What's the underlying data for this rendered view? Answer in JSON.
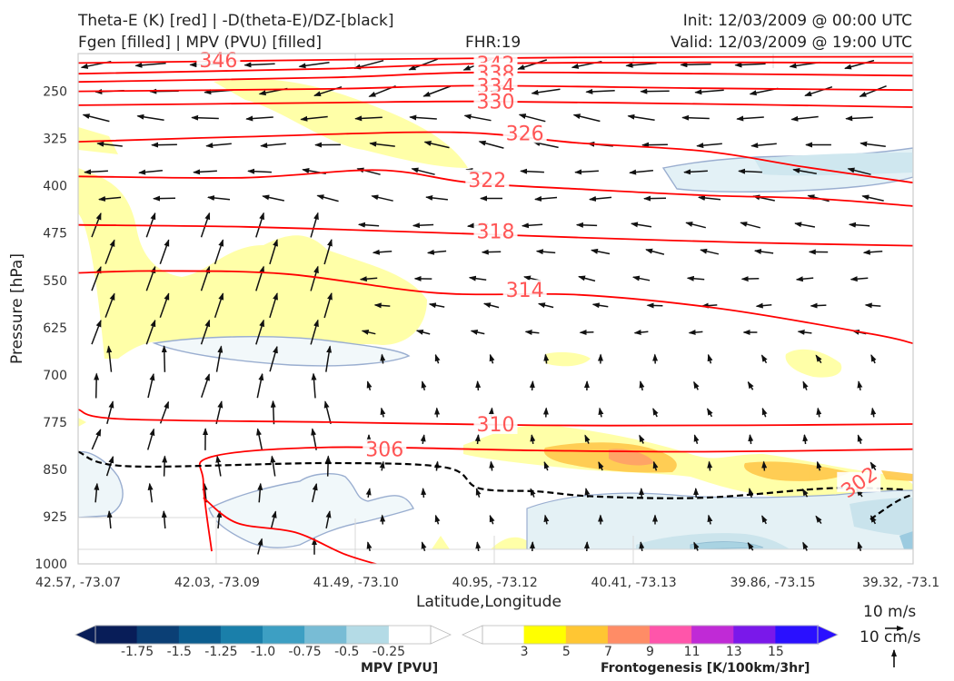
{
  "header": {
    "title_line1": "Theta-E (K) [red] | -D(theta-E)/DZ-[black]",
    "title_line2": "Fgen [filled] | MPV (PVU) [filled]",
    "fhr": "FHR:19",
    "init": "Init: 12/03/2009 @ 00:00 UTC",
    "valid": "Valid: 12/03/2009 @ 19:00 UTC"
  },
  "chart_data": {
    "type": "cross-section",
    "xlabel": "Latitude,Longitude",
    "ylabel": "Pressure [hPa]",
    "x_ticks": [
      "42.57, -73.07",
      "42.03, -73.09",
      "41.49, -73.10",
      "40.95, -73.12",
      "40.41, -73.13",
      "39.86, -73.15",
      "39.32, -73.1"
    ],
    "y_ticks": [
      250,
      325,
      400,
      475,
      550,
      625,
      700,
      775,
      850,
      925,
      1000
    ],
    "ylim": [
      1000,
      190
    ],
    "theta_e_contours": [
      {
        "label": "346",
        "level": 346,
        "points": [
          [
            0,
            205
          ],
          [
            0.3,
            200
          ],
          [
            0.6,
            196
          ],
          [
            1,
            195
          ]
        ]
      },
      {
        "label": "342",
        "level": 342,
        "points": [
          [
            0,
            222
          ],
          [
            0.3,
            214
          ],
          [
            0.48,
            206
          ],
          [
            0.75,
            204
          ],
          [
            1,
            205
          ]
        ]
      },
      {
        "label": "338",
        "level": 338,
        "points": [
          [
            0,
            235
          ],
          [
            0.3,
            228
          ],
          [
            0.48,
            220
          ],
          [
            0.75,
            222
          ],
          [
            1,
            225
          ]
        ]
      },
      {
        "label": "334",
        "level": 334,
        "points": [
          [
            0,
            250
          ],
          [
            0.3,
            246
          ],
          [
            0.48,
            241
          ],
          [
            0.75,
            245
          ],
          [
            1,
            248
          ]
        ]
      },
      {
        "label": "330",
        "level": 330,
        "points": [
          [
            0,
            272
          ],
          [
            0.3,
            268
          ],
          [
            0.48,
            266
          ],
          [
            0.75,
            270
          ],
          [
            1,
            275
          ]
        ]
      },
      {
        "label": "326",
        "level": 326,
        "points": [
          [
            0,
            330
          ],
          [
            0.2,
            322
          ],
          [
            0.45,
            315
          ],
          [
            0.6,
            332
          ],
          [
            0.75,
            345
          ],
          [
            0.87,
            370
          ],
          [
            1,
            395
          ]
        ]
      },
      {
        "label": "322",
        "level": 322,
        "points": [
          [
            0,
            385
          ],
          [
            0.2,
            387
          ],
          [
            0.36,
            375
          ],
          [
            0.47,
            395
          ],
          [
            0.6,
            405
          ],
          [
            0.75,
            415
          ],
          [
            0.88,
            420
          ],
          [
            1,
            432
          ]
        ]
      },
      {
        "label": "318",
        "level": 318,
        "points": [
          [
            0,
            462
          ],
          [
            0.2,
            465
          ],
          [
            0.4,
            473
          ],
          [
            0.6,
            482
          ],
          [
            0.8,
            490
          ],
          [
            1,
            495
          ]
        ]
      },
      {
        "label": "314",
        "level": 314,
        "points": [
          [
            0,
            538
          ],
          [
            0.1,
            535
          ],
          [
            0.25,
            540
          ],
          [
            0.43,
            570
          ],
          [
            0.6,
            573
          ],
          [
            0.77,
            595
          ],
          [
            0.95,
            635
          ],
          [
            1,
            650
          ]
        ]
      },
      {
        "label": "310",
        "level": 310,
        "points": [
          [
            0,
            755
          ],
          [
            0.05,
            770
          ],
          [
            0.3,
            775
          ],
          [
            0.55,
            780
          ],
          [
            0.8,
            780
          ],
          [
            1,
            778
          ]
        ]
      },
      {
        "label": "306",
        "level": 306,
        "points": [
          [
            0.16,
            980
          ],
          [
            0.15,
            870
          ],
          [
            0.16,
            830
          ],
          [
            0.3,
            815
          ],
          [
            0.55,
            820
          ],
          [
            0.75,
            822
          ],
          [
            1,
            818
          ]
        ]
      },
      {
        "label": "302",
        "level": 302,
        "points": [
          [
            0.15,
            895
          ],
          [
            0.19,
            935
          ],
          [
            0.26,
            950
          ],
          [
            0.32,
            985
          ],
          [
            0.37,
            1005
          ]
        ]
      }
    ],
    "stability_zero_contour": {
      "color": "#000000",
      "style": "dashed",
      "points": [
        [
          0,
          822
        ],
        [
          0.06,
          845
        ],
        [
          0.3,
          840
        ],
        [
          0.44,
          847
        ],
        [
          0.48,
          880
        ],
        [
          0.55,
          885
        ],
        [
          0.62,
          893
        ],
        [
          0.75,
          895
        ],
        [
          0.9,
          880
        ],
        [
          0.99,
          882
        ]
      ]
    },
    "fgen_units": "K/100km/3hr",
    "fgen_levels": [
      3,
      5,
      7,
      9,
      11,
      13,
      15
    ],
    "fgen_colors": [
      "#ffff00",
      "#ffc633",
      "#ff8c66",
      "#ff55aa",
      "#c02ad6",
      "#7a18ea",
      "#2a10ff"
    ],
    "mpv_units": "PVU",
    "mpv_levels": [
      -1.75,
      -1.5,
      -1.25,
      -1.0,
      -0.75,
      -0.5,
      -0.25
    ],
    "mpv_colors": [
      "#081d58",
      "#0b3f75",
      "#0c5d8f",
      "#1a7faa",
      "#3d9fc3",
      "#78bcd5",
      "#b4dbe6"
    ],
    "wind_reference": {
      "horizontal": "10 m/s",
      "vertical": "10 cm/s"
    }
  },
  "colorbars": {
    "mpv_title": "MPV [PVU]",
    "mpv_ticks": [
      "-1.75",
      "-1.5",
      "-1.25",
      "-1.0",
      "-0.75",
      "-0.5",
      "-0.25"
    ],
    "fgen_title": "Frontogenesis [K/100km/3hr]",
    "fgen_ticks": [
      "3",
      "5",
      "7",
      "9",
      "11",
      "13",
      "15"
    ]
  },
  "colors": {
    "theta_e": "#ff0000",
    "theta_e_label": "#ff5555",
    "mpv_contour": "#9aaed0",
    "vector": "#111111",
    "axes_bg": "#ffffff"
  }
}
